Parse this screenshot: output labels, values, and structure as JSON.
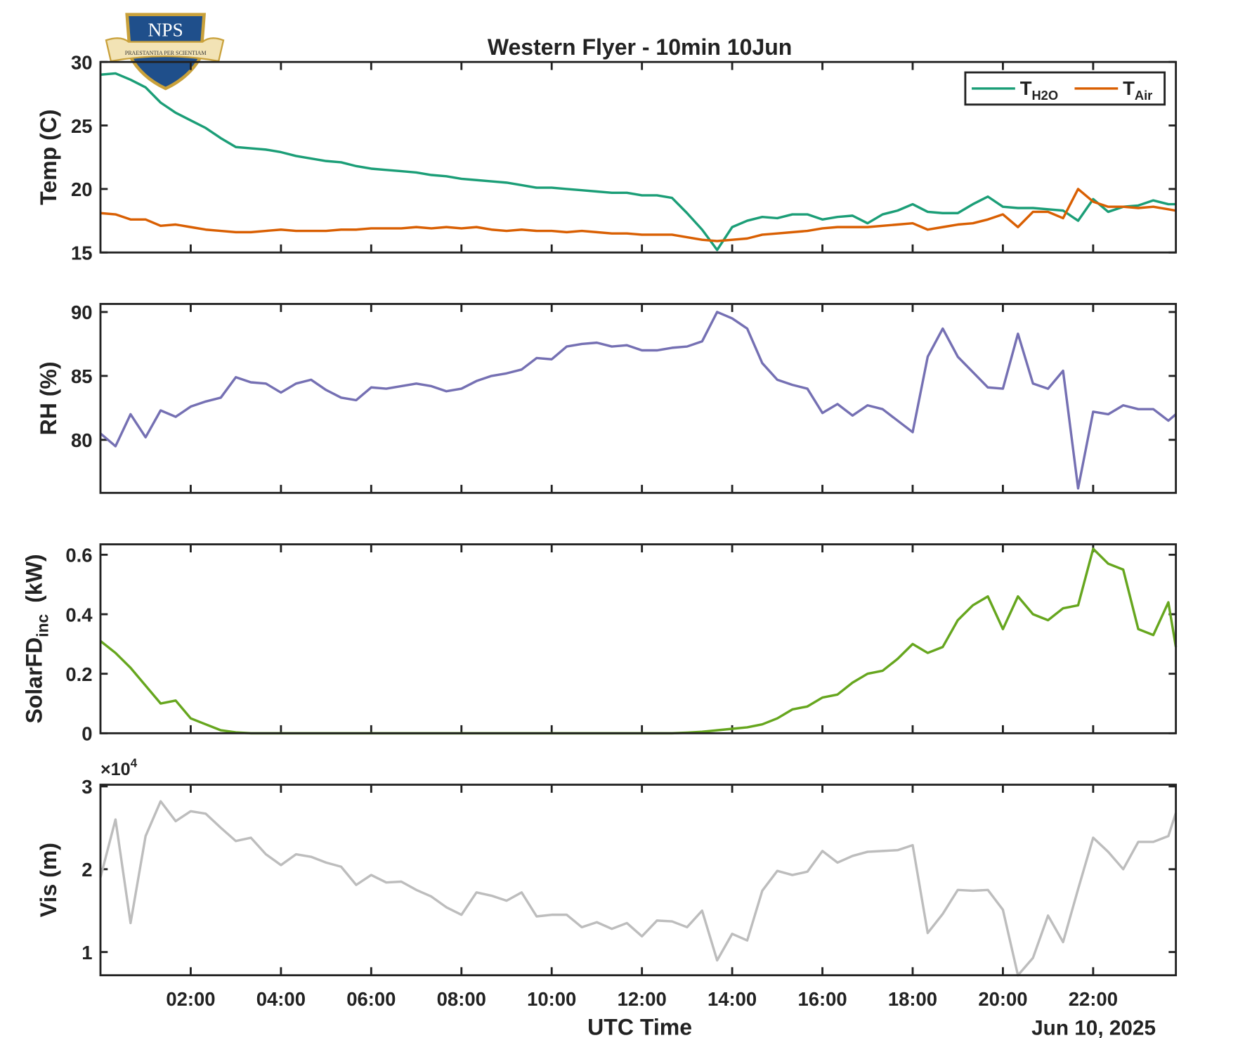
{
  "logo": {
    "text": "NPS",
    "motto": "PRAESTANTIA PER SCIENTIAM"
  },
  "chart_data": [
    {
      "type": "line",
      "title": "Western Flyer - 10min 10Jun",
      "ylabel": {
        "text": "Temp (C)"
      },
      "legend": "upper right",
      "x": [
        "00:00",
        "00:20",
        "00:40",
        "01:00",
        "01:20",
        "01:40",
        "02:00",
        "02:20",
        "02:40",
        "03:00",
        "03:20",
        "03:40",
        "04:00",
        "04:20",
        "04:40",
        "05:00",
        "05:20",
        "05:40",
        "06:00",
        "06:20",
        "06:40",
        "07:00",
        "07:20",
        "07:40",
        "08:00",
        "08:20",
        "08:40",
        "09:00",
        "09:20",
        "09:40",
        "10:00",
        "10:20",
        "10:40",
        "11:00",
        "11:20",
        "11:40",
        "12:00",
        "12:20",
        "12:40",
        "13:00",
        "13:20",
        "13:40",
        "14:00",
        "14:20",
        "14:40",
        "15:00",
        "15:20",
        "15:40",
        "16:00",
        "16:20",
        "16:40",
        "17:00",
        "17:20",
        "17:40",
        "18:00",
        "18:20",
        "18:40",
        "19:00",
        "19:20",
        "19:40",
        "20:00",
        "20:20",
        "20:40",
        "21:00",
        "21:20",
        "21:40",
        "22:00",
        "22:20",
        "22:40",
        "23:00",
        "23:20",
        "23:40",
        "23:50"
      ],
      "xlim": [
        "00:00",
        "23:50"
      ],
      "ylim": [
        15,
        30
      ],
      "yticks": [
        15,
        20,
        25,
        30
      ],
      "series": [
        {
          "name": "T",
          "subscript": "H2O",
          "color": "#1b9e77",
          "values": [
            29.0,
            29.1,
            28.6,
            28.0,
            26.8,
            26.0,
            25.4,
            24.8,
            24.0,
            23.3,
            23.2,
            23.1,
            22.9,
            22.6,
            22.4,
            22.2,
            22.1,
            21.8,
            21.6,
            21.5,
            21.4,
            21.3,
            21.1,
            21.0,
            20.8,
            20.7,
            20.6,
            20.5,
            20.3,
            20.1,
            20.1,
            20.0,
            19.9,
            19.8,
            19.7,
            19.7,
            19.5,
            19.5,
            19.3,
            18.1,
            16.8,
            15.2,
            17.0,
            17.5,
            17.8,
            17.7,
            18.0,
            18.0,
            17.6,
            17.8,
            17.9,
            17.3,
            18.0,
            18.3,
            18.8,
            18.2,
            18.1,
            18.1,
            18.8,
            19.4,
            18.6,
            18.5,
            18.5,
            18.4,
            18.3,
            17.5,
            19.2,
            18.2,
            18.6,
            18.7,
            19.1,
            18.8,
            18.8
          ]
        },
        {
          "name": "T",
          "subscript": "Air",
          "color": "#d95f02",
          "values": [
            18.1,
            18.0,
            17.6,
            17.6,
            17.1,
            17.2,
            17.0,
            16.8,
            16.7,
            16.6,
            16.6,
            16.7,
            16.8,
            16.7,
            16.7,
            16.7,
            16.8,
            16.8,
            16.9,
            16.9,
            16.9,
            17.0,
            16.9,
            17.0,
            16.9,
            17.0,
            16.8,
            16.7,
            16.8,
            16.7,
            16.7,
            16.6,
            16.7,
            16.6,
            16.5,
            16.5,
            16.4,
            16.4,
            16.4,
            16.2,
            16.0,
            15.9,
            16.0,
            16.1,
            16.4,
            16.5,
            16.6,
            16.7,
            16.9,
            17.0,
            17.0,
            17.0,
            17.1,
            17.2,
            17.3,
            16.8,
            17.0,
            17.2,
            17.3,
            17.6,
            18.0,
            17.0,
            18.2,
            18.2,
            17.7,
            20.0,
            19.0,
            18.6,
            18.6,
            18.5,
            18.6,
            18.4,
            18.3
          ]
        }
      ]
    },
    {
      "type": "line",
      "ylabel": {
        "text": "RH (%)"
      },
      "x": [
        "00:00",
        "00:20",
        "00:40",
        "01:00",
        "01:20",
        "01:40",
        "02:00",
        "02:20",
        "02:40",
        "03:00",
        "03:20",
        "03:40",
        "04:00",
        "04:20",
        "04:40",
        "05:00",
        "05:20",
        "05:40",
        "06:00",
        "06:20",
        "06:40",
        "07:00",
        "07:20",
        "07:40",
        "08:00",
        "08:20",
        "08:40",
        "09:00",
        "09:20",
        "09:40",
        "10:00",
        "10:20",
        "10:40",
        "11:00",
        "11:20",
        "11:40",
        "12:00",
        "12:20",
        "12:40",
        "13:00",
        "13:20",
        "13:40",
        "14:00",
        "14:20",
        "14:40",
        "15:00",
        "15:20",
        "15:40",
        "16:00",
        "16:20",
        "16:40",
        "17:00",
        "17:20",
        "17:40",
        "18:00",
        "18:20",
        "18:40",
        "19:00",
        "19:20",
        "19:40",
        "20:00",
        "20:20",
        "20:40",
        "21:00",
        "21:20",
        "21:40",
        "22:00",
        "22:20",
        "22:40",
        "23:00",
        "23:20",
        "23:40",
        "23:50"
      ],
      "xlim": [
        "00:00",
        "23:50"
      ],
      "ylim": [
        75.85,
        90.63
      ],
      "yticks": [
        80,
        85,
        90
      ],
      "series": [
        {
          "color": "#7570b3",
          "values": [
            80.5,
            79.5,
            82.0,
            80.2,
            82.3,
            81.8,
            82.6,
            83.0,
            83.3,
            84.9,
            84.5,
            84.4,
            83.7,
            84.4,
            84.7,
            83.9,
            83.3,
            83.1,
            84.1,
            84.0,
            84.2,
            84.4,
            84.2,
            83.8,
            84.0,
            84.6,
            85.0,
            85.2,
            85.5,
            86.4,
            86.3,
            87.3,
            87.5,
            87.6,
            87.3,
            87.4,
            87.0,
            87.0,
            87.2,
            87.3,
            87.7,
            90.0,
            89.5,
            88.7,
            86.0,
            84.7,
            84.3,
            84.0,
            82.1,
            82.8,
            81.9,
            82.7,
            82.4,
            81.5,
            80.6,
            86.5,
            88.7,
            86.5,
            85.3,
            84.1,
            84.0,
            88.3,
            84.4,
            84.0,
            85.4,
            76.2,
            82.2,
            82.0,
            82.7,
            82.4,
            82.4,
            81.5,
            82.0
          ]
        }
      ]
    },
    {
      "type": "line",
      "ylabel": {
        "text": "SolarFD",
        "subscript": "inc",
        "suffix": "(kW)"
      },
      "x": [
        "00:00",
        "00:20",
        "00:40",
        "01:00",
        "01:20",
        "01:40",
        "02:00",
        "02:20",
        "02:40",
        "03:00",
        "03:20",
        "03:40",
        "04:00",
        "04:20",
        "04:40",
        "05:00",
        "05:20",
        "05:40",
        "06:00",
        "06:20",
        "06:40",
        "07:00",
        "07:20",
        "07:40",
        "08:00",
        "08:20",
        "08:40",
        "09:00",
        "09:20",
        "09:40",
        "10:00",
        "10:20",
        "10:40",
        "11:00",
        "11:20",
        "11:40",
        "12:00",
        "12:20",
        "12:40",
        "13:00",
        "13:20",
        "13:40",
        "14:00",
        "14:20",
        "14:40",
        "15:00",
        "15:20",
        "15:40",
        "16:00",
        "16:20",
        "16:40",
        "17:00",
        "17:20",
        "17:40",
        "18:00",
        "18:20",
        "18:40",
        "19:00",
        "19:20",
        "19:40",
        "20:00",
        "20:20",
        "20:40",
        "21:00",
        "21:20",
        "21:40",
        "22:00",
        "22:20",
        "22:40",
        "23:00",
        "23:20",
        "23:40",
        "23:50"
      ],
      "xlim": [
        "00:00",
        "23:50"
      ],
      "ylim": [
        0,
        0.635
      ],
      "yticks": [
        0,
        0.2,
        0.4,
        0.6
      ],
      "series": [
        {
          "color": "#66a61e",
          "values": [
            0.31,
            0.27,
            0.22,
            0.16,
            0.1,
            0.11,
            0.05,
            0.03,
            0.01,
            0.003,
            0,
            0,
            0,
            0,
            0,
            0,
            0,
            0,
            0,
            0,
            0,
            0,
            0,
            0,
            0,
            0,
            0,
            0,
            0,
            0,
            0,
            0,
            0,
            0,
            0,
            0,
            0,
            0,
            0,
            0.002,
            0.005,
            0.01,
            0.015,
            0.02,
            0.03,
            0.05,
            0.08,
            0.09,
            0.12,
            0.13,
            0.17,
            0.2,
            0.21,
            0.25,
            0.3,
            0.27,
            0.29,
            0.38,
            0.43,
            0.46,
            0.35,
            0.46,
            0.4,
            0.38,
            0.42,
            0.43,
            0.62,
            0.57,
            0.55,
            0.35,
            0.33,
            0.44,
            0.29
          ]
        }
      ]
    },
    {
      "type": "line",
      "ylabel": {
        "text": "Vis (m)"
      },
      "xlabel": "UTC Time",
      "date_label": "Jun 10, 2025",
      "y_multiplier": {
        "base": "×10",
        "power": "4"
      },
      "x": [
        "00:00",
        "00:20",
        "00:40",
        "01:00",
        "01:20",
        "01:40",
        "02:00",
        "02:20",
        "02:40",
        "03:00",
        "03:20",
        "03:40",
        "04:00",
        "04:20",
        "04:40",
        "05:00",
        "05:20",
        "05:40",
        "06:00",
        "06:20",
        "06:40",
        "07:00",
        "07:20",
        "07:40",
        "08:00",
        "08:20",
        "08:40",
        "09:00",
        "09:20",
        "09:40",
        "10:00",
        "10:20",
        "10:40",
        "11:00",
        "11:20",
        "11:40",
        "12:00",
        "12:20",
        "12:40",
        "13:00",
        "13:20",
        "13:40",
        "14:00",
        "14:20",
        "14:40",
        "15:00",
        "15:20",
        "15:40",
        "16:00",
        "16:20",
        "16:40",
        "17:00",
        "17:20",
        "17:40",
        "18:00",
        "18:20",
        "18:40",
        "19:00",
        "19:20",
        "19:40",
        "20:00",
        "20:20",
        "20:40",
        "21:00",
        "21:20",
        "21:40",
        "22:00",
        "22:20",
        "22:40",
        "23:00",
        "23:20",
        "23:40",
        "23:50"
      ],
      "xlim": [
        "00:00",
        "23:50"
      ],
      "xticks": [
        "02:00",
        "04:00",
        "06:00",
        "08:00",
        "10:00",
        "12:00",
        "14:00",
        "16:00",
        "18:00",
        "20:00",
        "22:00"
      ],
      "ylim": [
        7200,
        30200
      ],
      "yticks": [
        {
          "value": 10000,
          "label": "1"
        },
        {
          "value": 20000,
          "label": "2"
        },
        {
          "value": 30000,
          "label": "3"
        }
      ],
      "series": [
        {
          "color": "#bdbdbd",
          "values": [
            19000,
            26000,
            13500,
            24000,
            28200,
            25800,
            27000,
            26700,
            25000,
            23400,
            23800,
            21800,
            20500,
            21800,
            21500,
            20800,
            20300,
            18100,
            19300,
            18400,
            18500,
            17500,
            16700,
            15400,
            14500,
            17200,
            16800,
            16200,
            17200,
            14300,
            14500,
            14500,
            13000,
            13600,
            12800,
            13500,
            11900,
            13800,
            13700,
            13000,
            15000,
            9000,
            12200,
            11400,
            17400,
            19800,
            19300,
            19700,
            22200,
            20800,
            21600,
            22100,
            22200,
            22300,
            22900,
            12300,
            14600,
            17500,
            17400,
            17500,
            15100,
            7200,
            9300,
            14400,
            11200,
            17600,
            23800,
            22100,
            20000,
            23300,
            23300,
            24000,
            26800
          ]
        }
      ]
    }
  ]
}
